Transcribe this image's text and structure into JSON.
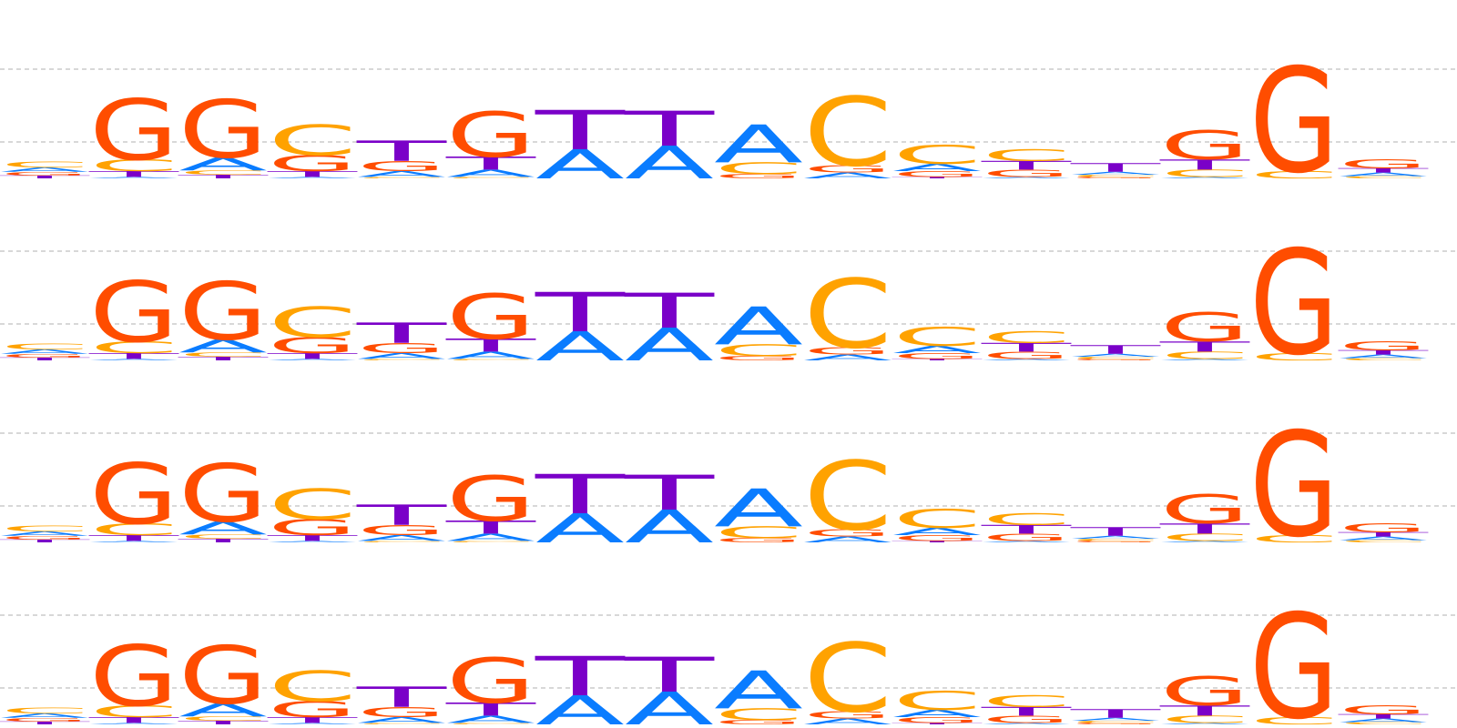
{
  "chart_data": {
    "type": "sequence-logo",
    "alphabet": [
      "A",
      "C",
      "G",
      "T"
    ],
    "colors": {
      "A": "#0a7cff",
      "C": "#ffa200",
      "G": "#ff4d00",
      "T": "#7a00c8"
    },
    "ylim": [
      0,
      2
    ],
    "gridlines": [
      0.5,
      1.5
    ],
    "repeat_rows": 4,
    "positions": [
      {
        "A": 0.06,
        "C": 0.08,
        "G": 0.05,
        "T": 0.04
      },
      {
        "A": 0.02,
        "C": 0.16,
        "G": 0.84,
        "T": 0.08
      },
      {
        "A": 0.18,
        "C": 0.06,
        "G": 0.8,
        "T": 0.05
      },
      {
        "A": 0.02,
        "C": 0.42,
        "G": 0.22,
        "T": 0.08
      },
      {
        "A": 0.08,
        "C": 0.02,
        "G": 0.14,
        "T": 0.28
      },
      {
        "A": 0.1,
        "C": 0.02,
        "G": 0.62,
        "T": 0.18
      },
      {
        "A": 0.4,
        "C": 0.0,
        "G": 0.0,
        "T": 0.54
      },
      {
        "A": 0.45,
        "C": 0.0,
        "G": 0.0,
        "T": 0.48
      },
      {
        "A": 0.52,
        "C": 0.16,
        "G": 0.06,
        "T": 0.0
      },
      {
        "A": 0.08,
        "C": 0.95,
        "G": 0.1,
        "T": 0.0
      },
      {
        "A": 0.1,
        "C": 0.26,
        "G": 0.08,
        "T": 0.02
      },
      {
        "A": 0.02,
        "C": 0.16,
        "G": 0.1,
        "T": 0.12
      },
      {
        "A": 0.04,
        "C": 0.03,
        "G": 0.02,
        "T": 0.12
      },
      {
        "A": 0.02,
        "C": 0.1,
        "G": 0.4,
        "T": 0.14
      },
      {
        "A": 0.0,
        "C": 0.1,
        "G": 1.44,
        "T": 0.0
      },
      {
        "A": 0.05,
        "C": 0.03,
        "G": 0.12,
        "T": 0.06
      }
    ]
  }
}
